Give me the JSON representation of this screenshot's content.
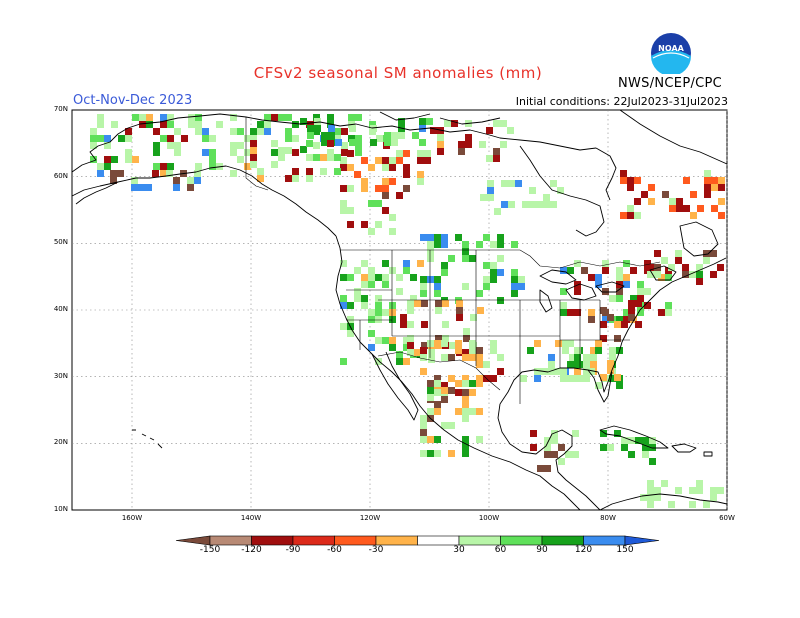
{
  "header": {
    "title": "CFSv2 seasonal SM anomalies (mm)",
    "season": "Oct-Nov-Dec 2023",
    "initial_conditions": "Initial conditions: 22Jul2023-31Jul2023",
    "agency": "NWS/NCEP/CPC",
    "logo_text": "NOAA"
  },
  "map": {
    "lat_labels": [
      "70N",
      "60N",
      "50N",
      "40N",
      "30N",
      "20N",
      "10N"
    ],
    "lon_labels": [
      "160W",
      "140W",
      "120W",
      "100W",
      "80W",
      "60W"
    ]
  },
  "colorbar": {
    "labels": [
      "-150",
      "-120",
      "-90",
      "-60",
      "-30",
      "30",
      "60",
      "90",
      "120",
      "150"
    ],
    "colors": [
      "#7a4a3a",
      "#b88a75",
      "#a00e0e",
      "#dc2a1a",
      "#ff5a1e",
      "#ffb34a",
      "#ffffff",
      "#b8f5a8",
      "#5fe05a",
      "#17a21c",
      "#3a8cef",
      "#1f5ad8"
    ]
  },
  "colors": {
    "dry_strong": "#7a4a3a",
    "dry": "#a00e0e",
    "dry_mod": "#ff5a1e",
    "dry_weak": "#ffb34a",
    "wet_weak": "#b8f5a8",
    "wet_mod": "#5fe05a",
    "wet": "#17a21c",
    "wet_strong": "#3a8cef"
  }
}
